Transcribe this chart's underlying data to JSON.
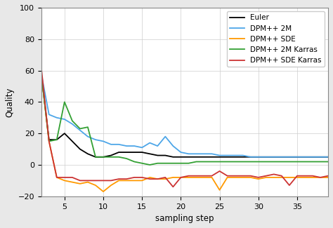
{
  "title": "",
  "xlabel": "sampling step",
  "ylabel": "Quality",
  "ylim": [
    -20,
    100
  ],
  "xlim": [
    2,
    39
  ],
  "xticks": [
    5,
    10,
    15,
    20,
    25,
    30,
    35
  ],
  "yticks": [
    -20,
    0,
    20,
    40,
    60,
    80,
    100
  ],
  "series": {
    "Euler": {
      "color": "#000000",
      "x": [
        2,
        3,
        4,
        5,
        6,
        7,
        8,
        9,
        10,
        11,
        12,
        13,
        14,
        15,
        16,
        17,
        18,
        19,
        20,
        21,
        22,
        23,
        24,
        25,
        26,
        27,
        28,
        29,
        30,
        31,
        32,
        33,
        34,
        35,
        36,
        37,
        38,
        39
      ],
      "y": [
        58,
        16,
        16,
        20,
        15,
        10,
        7,
        5,
        5,
        6,
        8,
        8,
        8,
        8,
        7,
        6,
        6,
        5,
        5,
        5,
        5,
        5,
        5,
        5,
        5,
        5,
        5,
        5,
        5,
        5,
        5,
        5,
        5,
        5,
        5,
        5,
        5,
        5
      ]
    },
    "DPM++ 2M": {
      "color": "#4da6e8",
      "x": [
        2,
        3,
        4,
        5,
        6,
        7,
        8,
        9,
        10,
        11,
        12,
        13,
        14,
        15,
        16,
        17,
        18,
        19,
        20,
        21,
        22,
        23,
        24,
        25,
        26,
        27,
        28,
        29,
        30,
        31,
        32,
        33,
        34,
        35,
        36,
        37,
        38,
        39
      ],
      "y": [
        58,
        32,
        30,
        29,
        26,
        22,
        18,
        16,
        15,
        13,
        13,
        12,
        12,
        11,
        14,
        12,
        18,
        12,
        8,
        7,
        7,
        7,
        7,
        6,
        6,
        6,
        6,
        5,
        5,
        5,
        5,
        5,
        5,
        5,
        5,
        5,
        5,
        5
      ]
    },
    "DPM++ SDE": {
      "color": "#ff9900",
      "x": [
        2,
        3,
        4,
        5,
        6,
        7,
        8,
        9,
        10,
        11,
        12,
        13,
        14,
        15,
        16,
        17,
        18,
        19,
        20,
        21,
        22,
        23,
        24,
        25,
        26,
        27,
        28,
        29,
        30,
        31,
        32,
        33,
        34,
        35,
        36,
        37,
        38,
        39
      ],
      "y": [
        58,
        15,
        -8,
        -10,
        -11,
        -12,
        -11,
        -13,
        -17,
        -13,
        -10,
        -10,
        -10,
        -10,
        -8,
        -9,
        -9,
        -8,
        -8,
        -8,
        -8,
        -8,
        -8,
        -16,
        -8,
        -8,
        -8,
        -8,
        -9,
        -8,
        -8,
        -8,
        -8,
        -8,
        -8,
        -8,
        -8,
        -8
      ]
    },
    "DPM++ 2M Karras": {
      "color": "#33a033",
      "x": [
        2,
        3,
        4,
        5,
        6,
        7,
        8,
        9,
        10,
        11,
        12,
        13,
        14,
        15,
        16,
        17,
        18,
        19,
        20,
        21,
        22,
        23,
        24,
        25,
        26,
        27,
        28,
        29,
        30,
        31,
        32,
        33,
        34,
        35,
        36,
        37,
        38,
        39
      ],
      "y": [
        58,
        15,
        16,
        40,
        28,
        23,
        24,
        5,
        5,
        5,
        5,
        4,
        2,
        1,
        0,
        1,
        1,
        1,
        1,
        1,
        2,
        2,
        2,
        2,
        2,
        2,
        2,
        2,
        2,
        2,
        2,
        2,
        2,
        2,
        2,
        2,
        2,
        2
      ]
    },
    "DPM++ SDE Karras": {
      "color": "#cc3333",
      "x": [
        2,
        3,
        4,
        5,
        6,
        7,
        8,
        9,
        10,
        11,
        12,
        13,
        14,
        15,
        16,
        17,
        18,
        19,
        20,
        21,
        22,
        23,
        24,
        25,
        26,
        27,
        28,
        29,
        30,
        31,
        32,
        33,
        34,
        35,
        36,
        37,
        38,
        39
      ],
      "y": [
        62,
        15,
        -8,
        -8,
        -8,
        -10,
        -10,
        -10,
        -10,
        -10,
        -9,
        -9,
        -8,
        -8,
        -9,
        -9,
        -8,
        -14,
        -8,
        -7,
        -7,
        -7,
        -7,
        -4,
        -7,
        -7,
        -7,
        -7,
        -8,
        -7,
        -6,
        -7,
        -13,
        -7,
        -7,
        -7,
        -8,
        -7
      ]
    }
  },
  "plot_bg_color": "#ffffff",
  "fig_bg_color": "#e8e8e8",
  "legend_loc": "upper right",
  "fontsize": 8.5,
  "tick_fontsize": 8,
  "linewidth": 1.3
}
